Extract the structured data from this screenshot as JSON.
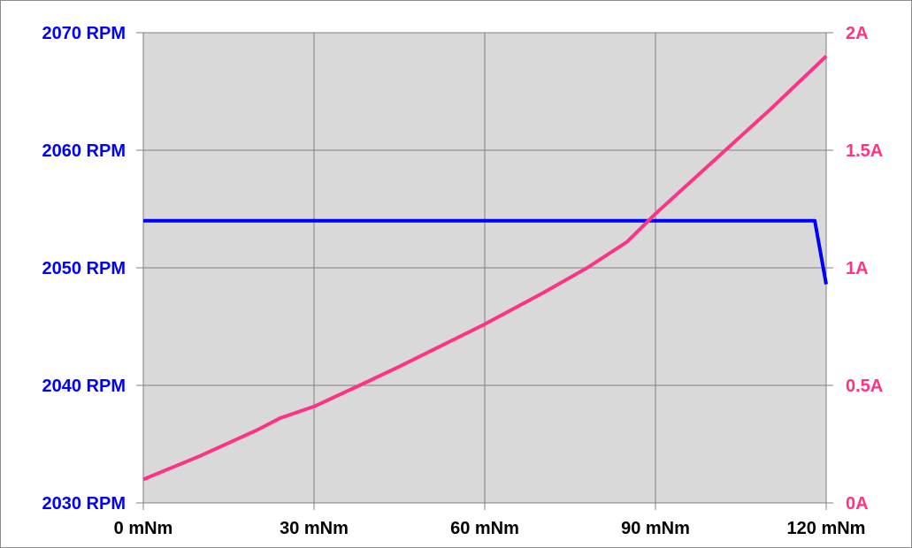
{
  "chart_data": {
    "type": "line",
    "title": "",
    "xlabel": "",
    "ylabel": "",
    "y2label": "",
    "xlim": [
      0,
      120
    ],
    "ylim": [
      2030,
      2070
    ],
    "y2lim": [
      0,
      2
    ],
    "x_ticks": [
      "0 mNm",
      "30 mNm",
      "60 mNm",
      "90 mNm",
      "120 mNm"
    ],
    "y_ticks": [
      "2030 RPM",
      "2040 RPM",
      "2050 RPM",
      "2060 RPM",
      "2070 RPM"
    ],
    "y2_ticks": [
      "0A",
      "0.5A",
      "1A",
      "1.5A",
      "2A"
    ],
    "grid": true,
    "plot_background": "#d9d9d9",
    "colors": {
      "speed": "#0000ff",
      "current": "#ff3385",
      "x_axis_text": "#000000"
    },
    "series": [
      {
        "axis": "left",
        "color": "#0000ff",
        "x": [
          0,
          118,
          120
        ],
        "y": [
          2054,
          2054,
          2048.6
        ]
      },
      {
        "axis": "right",
        "color": "#ff3385",
        "x": [
          0,
          10,
          20,
          24,
          30,
          38,
          45,
          60,
          70,
          78,
          85,
          90,
          100,
          110,
          120
        ],
        "y": [
          0.1,
          0.2,
          0.31,
          0.36,
          0.41,
          0.5,
          0.58,
          0.76,
          0.89,
          1.0,
          1.11,
          1.23,
          1.45,
          1.67,
          1.9
        ]
      }
    ]
  }
}
